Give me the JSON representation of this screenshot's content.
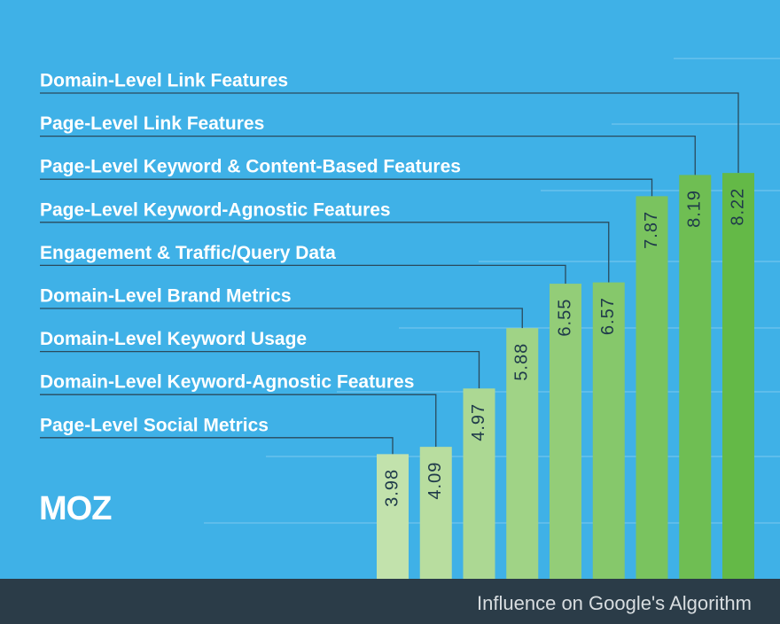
{
  "chart_data": {
    "type": "bar",
    "categories": [
      "Page-Level Social Metrics",
      "Domain-Level Keyword-Agnostic Features",
      "Domain-Level Keyword Usage",
      "Domain-Level Brand Metrics",
      "Engagement & Traffic/Query Data",
      "Page-Level Keyword-Agnostic Features",
      "Page-Level Keyword & Content-Based Features",
      "Page-Level Link Features",
      "Domain-Level Link Features"
    ],
    "values": [
      3.98,
      4.09,
      4.97,
      5.88,
      6.55,
      6.57,
      7.87,
      8.19,
      8.22
    ],
    "colors": [
      "#c2e2ac",
      "#b8dd9f",
      "#acd893",
      "#a0d386",
      "#93cd78",
      "#86c86b",
      "#7ac35f",
      "#6fbe53",
      "#64b947"
    ],
    "ylim": [
      2.1,
      10
    ],
    "logo": "MOZ",
    "caption": "Influence on Google's Algorithm"
  }
}
